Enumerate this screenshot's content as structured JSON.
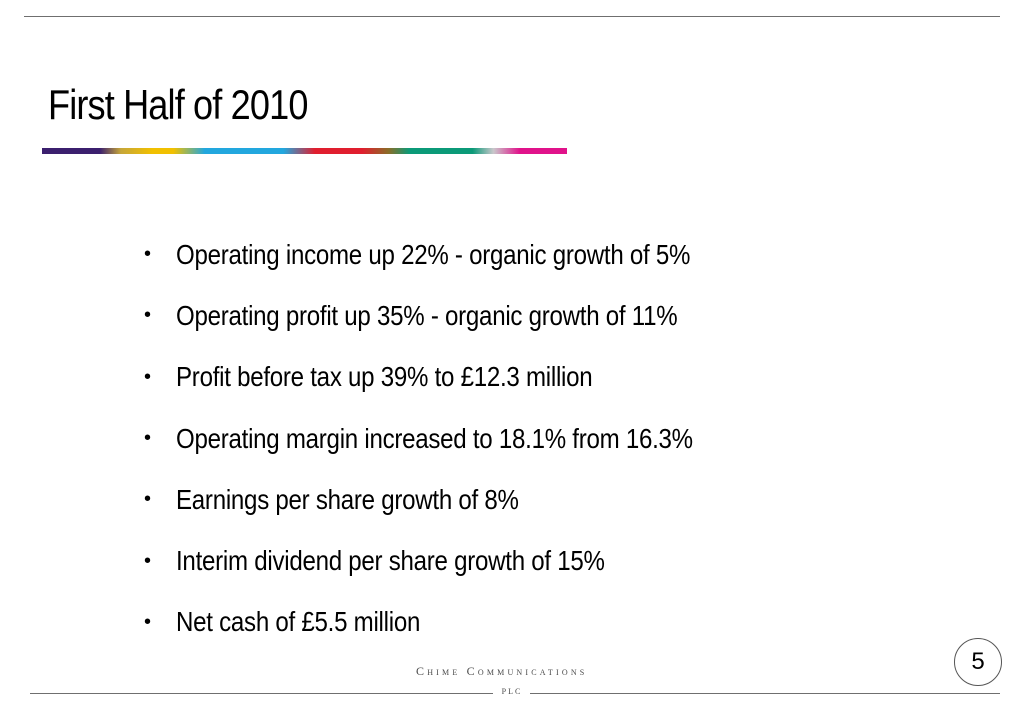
{
  "slide": {
    "title": "First Half of 2010",
    "bullets": [
      "Operating income up 22% - organic growth of 5%",
      "Operating profit up 35% - organic growth of 11%",
      "Profit before tax up 39% to £12.3 million",
      "Operating margin increased to 18.1% from 16.3%",
      "Earnings per share growth of 8%",
      "Interim dividend per share growth of 15%",
      "Net cash of £5.5 million"
    ],
    "bullet_glyph": "•",
    "page_number": "5"
  },
  "footer": {
    "company_name": "Chime Communications",
    "company_suffix": "PLC"
  },
  "colors": {
    "accent_bar": [
      "#3b1f6e",
      "#f1c000",
      "#22a7de",
      "#e01e2e",
      "#0b9a78",
      "#c9c7cb",
      "#e0128a"
    ],
    "rule": "#6f6f6f",
    "text": "#000000"
  }
}
